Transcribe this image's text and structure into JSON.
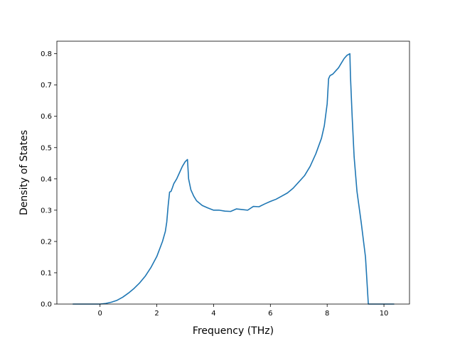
{
  "chart_data": {
    "type": "line",
    "title": "",
    "xlabel": "Frequency (THz)",
    "ylabel": "Density of States",
    "xlim": [
      -1.52,
      10.9
    ],
    "ylim": [
      0.0,
      0.84
    ],
    "xticks": [
      0,
      2,
      4,
      6,
      8,
      10
    ],
    "xtick_labels": [
      "0",
      "2",
      "4",
      "6",
      "8",
      "10"
    ],
    "yticks": [
      0.0,
      0.1,
      0.2,
      0.3,
      0.4,
      0.5,
      0.6,
      0.7,
      0.8
    ],
    "ytick_labels": [
      "0.0",
      "0.1",
      "0.2",
      "0.3",
      "0.4",
      "0.5",
      "0.6",
      "0.7",
      "0.8"
    ],
    "grid": false,
    "legend": null,
    "series": [
      {
        "color": "#1f77b4",
        "x": [
          -0.95,
          0.0,
          0.2,
          0.4,
          0.6,
          0.8,
          1.0,
          1.2,
          1.4,
          1.6,
          1.8,
          2.0,
          2.2,
          2.3,
          2.35,
          2.4,
          2.45,
          2.5,
          2.55,
          2.6,
          2.7,
          2.8,
          2.9,
          3.0,
          3.08,
          3.12,
          3.2,
          3.3,
          3.4,
          3.6,
          3.8,
          4.0,
          4.2,
          4.4,
          4.6,
          4.8,
          5.0,
          5.2,
          5.4,
          5.6,
          5.8,
          6.0,
          6.2,
          6.4,
          6.6,
          6.8,
          7.0,
          7.2,
          7.4,
          7.6,
          7.8,
          7.9,
          8.0,
          8.05,
          8.1,
          8.2,
          8.3,
          8.4,
          8.5,
          8.6,
          8.7,
          8.8,
          8.82,
          8.88,
          8.95,
          9.05,
          9.2,
          9.35,
          9.45,
          10.35
        ],
        "y": [
          0.0,
          0.0,
          0.002,
          0.006,
          0.012,
          0.022,
          0.035,
          0.05,
          0.068,
          0.09,
          0.118,
          0.152,
          0.2,
          0.232,
          0.262,
          0.315,
          0.358,
          0.36,
          0.372,
          0.385,
          0.4,
          0.42,
          0.44,
          0.455,
          0.462,
          0.4,
          0.365,
          0.345,
          0.33,
          0.315,
          0.307,
          0.3,
          0.3,
          0.297,
          0.296,
          0.304,
          0.302,
          0.3,
          0.312,
          0.311,
          0.32,
          0.328,
          0.335,
          0.345,
          0.355,
          0.37,
          0.39,
          0.41,
          0.44,
          0.48,
          0.53,
          0.57,
          0.64,
          0.72,
          0.73,
          0.735,
          0.745,
          0.755,
          0.77,
          0.785,
          0.795,
          0.8,
          0.73,
          0.6,
          0.47,
          0.36,
          0.26,
          0.15,
          0.0,
          0.0
        ]
      }
    ]
  }
}
